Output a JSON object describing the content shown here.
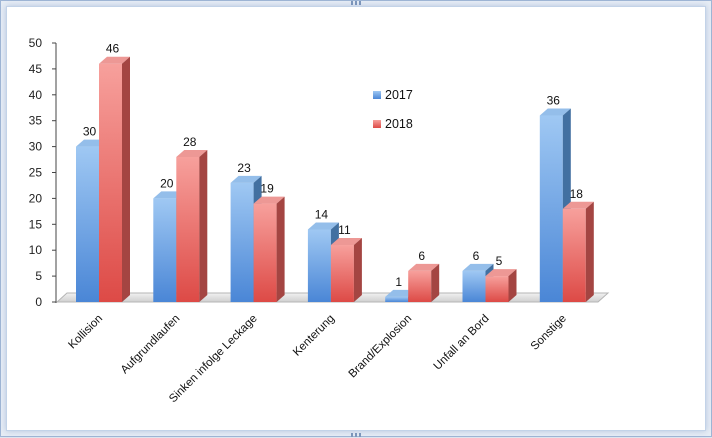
{
  "chart_data": {
    "type": "bar",
    "title": "",
    "xlabel": "",
    "ylabel": "",
    "ylim": [
      0,
      50
    ],
    "yticks": [
      0,
      5,
      10,
      15,
      20,
      25,
      30,
      35,
      40,
      45,
      50
    ],
    "categories": [
      "Kollision",
      "Aufgrundlaufen",
      "Sinken infolge Leckage",
      "Kenterung",
      "Brand/Explosion",
      "Unfall an Bord",
      "Sonstige"
    ],
    "series": [
      {
        "name": "2017",
        "color": "#5b9bdf",
        "values": [
          30,
          20,
          23,
          14,
          1,
          6,
          36
        ]
      },
      {
        "name": "2018",
        "color": "#e4605c",
        "values": [
          46,
          28,
          19,
          11,
          6,
          5,
          18
        ]
      }
    ],
    "grid": false,
    "legend": "upper-middle",
    "style": "3d-columns"
  }
}
